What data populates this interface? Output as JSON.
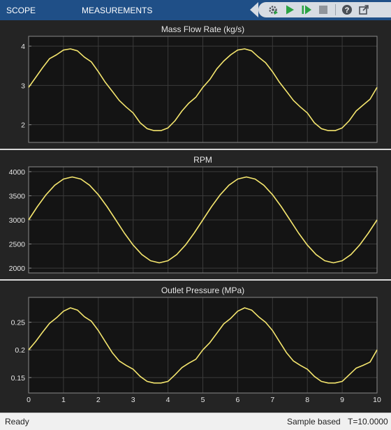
{
  "toolstrip": {
    "tabs": [
      {
        "label": "SCOPE"
      },
      {
        "label": "MEASUREMENTS"
      }
    ],
    "quick_access": [
      {
        "icon": "settings-run-icon",
        "name": "settings"
      },
      {
        "icon": "run-play-icon",
        "name": "run"
      },
      {
        "icon": "step-forward-icon",
        "name": "step-forward"
      },
      {
        "icon": "stop-icon",
        "name": "stop"
      },
      {
        "icon": "help-icon",
        "name": "help",
        "glyph": "?"
      },
      {
        "icon": "undock-icon",
        "name": "undock"
      }
    ],
    "colors": {
      "background": "#1f4f87",
      "quick_access_bg": "#d7dce3",
      "play_green": "#2aa343"
    }
  },
  "status": {
    "left": "Ready",
    "mode": "Sample based",
    "time": "T=10.0000"
  },
  "chart_data": [
    {
      "type": "line",
      "title": "Mass Flow Rate (kg/s)",
      "xlim": [
        0,
        10
      ],
      "ylim": [
        1.55,
        4.25
      ],
      "yticks": [
        2,
        3,
        4
      ],
      "xticks": [],
      "grid": true,
      "line_color": "#f5e66e",
      "series": [
        {
          "x": [
            0,
            0.2,
            0.4,
            0.6,
            0.8,
            1.0,
            1.2,
            1.4,
            1.6,
            1.8,
            2.0,
            2.2,
            2.4,
            2.6,
            2.8,
            3.0,
            3.2,
            3.4,
            3.6,
            3.8,
            4.0,
            4.2,
            4.4,
            4.6,
            4.8,
            5.0,
            5.2,
            5.4,
            5.6,
            5.8,
            6.0,
            6.2,
            6.4,
            6.6,
            6.8,
            7.0,
            7.2,
            7.4,
            7.6,
            7.8,
            8.0,
            8.2,
            8.4,
            8.6,
            8.8,
            9.0,
            9.2,
            9.4,
            9.6,
            9.8,
            10.0
          ],
          "y": [
            2.95,
            3.2,
            3.45,
            3.68,
            3.78,
            3.9,
            3.93,
            3.88,
            3.72,
            3.6,
            3.35,
            3.08,
            2.85,
            2.62,
            2.45,
            2.3,
            2.05,
            1.9,
            1.85,
            1.85,
            1.92,
            2.1,
            2.35,
            2.55,
            2.7,
            2.95,
            3.15,
            3.42,
            3.62,
            3.78,
            3.9,
            3.93,
            3.88,
            3.72,
            3.58,
            3.35,
            3.08,
            2.85,
            2.62,
            2.45,
            2.3,
            2.05,
            1.9,
            1.85,
            1.85,
            1.92,
            2.1,
            2.35,
            2.5,
            2.65,
            2.95
          ]
        }
      ]
    },
    {
      "type": "line",
      "title": "RPM",
      "xlim": [
        0,
        10
      ],
      "ylim": [
        1900,
        4100
      ],
      "yticks": [
        2000,
        2500,
        3000,
        3500,
        4000
      ],
      "xticks": [],
      "grid": true,
      "line_color": "#f5e66e",
      "series": [
        {
          "x": [
            0,
            0.25,
            0.5,
            0.75,
            1.0,
            1.25,
            1.5,
            1.75,
            2.0,
            2.25,
            2.5,
            2.75,
            3.0,
            3.25,
            3.5,
            3.75,
            4.0,
            4.25,
            4.5,
            4.75,
            5.0,
            5.25,
            5.5,
            5.75,
            6.0,
            6.25,
            6.5,
            6.75,
            7.0,
            7.25,
            7.5,
            7.75,
            8.0,
            8.25,
            8.5,
            8.75,
            9.0,
            9.25,
            9.5,
            9.75,
            10.0
          ],
          "y": [
            3000,
            3275,
            3523,
            3720,
            3846,
            3890,
            3846,
            3720,
            3523,
            3275,
            3000,
            2725,
            2477,
            2280,
            2154,
            2110,
            2154,
            2280,
            2477,
            2725,
            3000,
            3275,
            3523,
            3720,
            3846,
            3890,
            3846,
            3720,
            3523,
            3275,
            3000,
            2725,
            2477,
            2280,
            2154,
            2110,
            2154,
            2280,
            2477,
            2725,
            3000
          ]
        }
      ]
    },
    {
      "type": "line",
      "title": "Outlet Pressure (MPa)",
      "xlim": [
        0,
        10
      ],
      "ylim": [
        0.122,
        0.295
      ],
      "yticks": [
        0.15,
        0.2,
        0.25
      ],
      "xticks": [
        0,
        1,
        2,
        3,
        4,
        5,
        6,
        7,
        8,
        9,
        10
      ],
      "grid": true,
      "line_color": "#f5e66e",
      "series": [
        {
          "x": [
            0,
            0.2,
            0.4,
            0.6,
            0.8,
            1.0,
            1.2,
            1.4,
            1.6,
            1.8,
            2.0,
            2.2,
            2.4,
            2.6,
            2.8,
            3.0,
            3.2,
            3.4,
            3.6,
            3.8,
            4.0,
            4.2,
            4.4,
            4.6,
            4.8,
            5.0,
            5.2,
            5.4,
            5.6,
            5.8,
            6.0,
            6.2,
            6.4,
            6.6,
            6.8,
            7.0,
            7.2,
            7.4,
            7.6,
            7.8,
            8.0,
            8.2,
            8.4,
            8.6,
            8.8,
            9.0,
            9.2,
            9.4,
            9.6,
            9.8,
            10.0
          ],
          "y": [
            0.2,
            0.215,
            0.232,
            0.248,
            0.258,
            0.27,
            0.276,
            0.272,
            0.26,
            0.252,
            0.235,
            0.215,
            0.195,
            0.18,
            0.172,
            0.165,
            0.152,
            0.143,
            0.14,
            0.14,
            0.143,
            0.155,
            0.168,
            0.176,
            0.183,
            0.2,
            0.213,
            0.23,
            0.247,
            0.257,
            0.27,
            0.276,
            0.272,
            0.26,
            0.25,
            0.235,
            0.215,
            0.195,
            0.18,
            0.172,
            0.165,
            0.152,
            0.143,
            0.14,
            0.14,
            0.143,
            0.155,
            0.167,
            0.172,
            0.178,
            0.2
          ]
        }
      ]
    }
  ]
}
